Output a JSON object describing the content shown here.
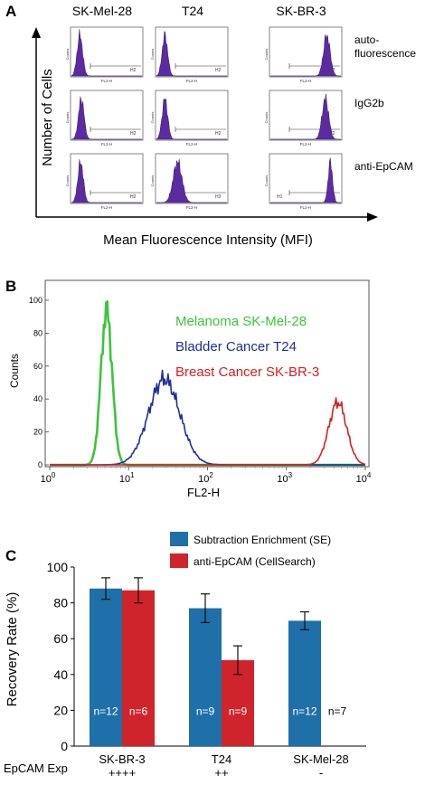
{
  "panel_a": {
    "label": "A",
    "columns": [
      "SK-Mel-28",
      "T24",
      "SK-BR-3"
    ],
    "rows": [
      "auto-\nfluorescence",
      "IgG2b",
      "anti-EpCAM"
    ],
    "ylabel": "Number of Cells",
    "xlabel": "Mean Fluorescence Intensity (MFI)",
    "mini": {
      "ylab": "Counts",
      "xlab": "FL2-H",
      "gate": "H2",
      "gate_left": "H1"
    },
    "peaks": [
      [
        [
          0.12,
          0.1
        ],
        [
          0.12,
          0.1
        ],
        [
          0.8,
          0.12
        ]
      ],
      [
        [
          0.14,
          0.1
        ],
        [
          0.12,
          0.1
        ],
        [
          0.78,
          0.12
        ]
      ],
      [
        [
          0.13,
          0.1
        ],
        [
          0.3,
          0.16
        ],
        [
          0.85,
          0.08
        ]
      ]
    ]
  },
  "panel_b": {
    "label": "B",
    "ylabel": "Counts",
    "xlabel": "FL2-H",
    "yticks": [
      0,
      20,
      40,
      60,
      80,
      100
    ],
    "xticks": [
      "0",
      "1",
      "2",
      "3",
      "4"
    ],
    "tick_base": "10",
    "series": [
      {
        "name": "Melanoma SK-Mel-28",
        "color": "#3cc43c",
        "center": 0.72,
        "width": 0.1,
        "height": 94
      },
      {
        "name": "Bladder Cancer T24",
        "color": "#1f2d9a",
        "center": 1.45,
        "width": 0.28,
        "height": 52
      },
      {
        "name": "Breast Cancer SK-BR-3",
        "color": "#d42020",
        "center": 3.65,
        "width": 0.16,
        "height": 38
      }
    ]
  },
  "chart_data": {
    "type": "bar",
    "title": "",
    "xlabel": "",
    "ylabel": "Recovery Rate (%)",
    "ylim": [
      0,
      100
    ],
    "yticks": [
      0,
      20,
      40,
      60,
      80,
      100
    ],
    "categories": [
      "SK-BR-3",
      "T24",
      "SK-Mel-28"
    ],
    "series": [
      {
        "name": "Subtraction Enrichment (SE)",
        "color": "#1f6fa8",
        "values": [
          88,
          77,
          70
        ],
        "errors": [
          6,
          8,
          5
        ],
        "n_labels": [
          "n=12",
          "n=9",
          "n=12"
        ]
      },
      {
        "name": "anti-EpCAM (CellSearch)",
        "color": "#d0242c",
        "values": [
          87,
          48,
          null
        ],
        "errors": [
          7,
          8,
          null
        ],
        "n_labels": [
          "n=6",
          "n=9",
          "n=7"
        ]
      }
    ],
    "epcam_label": "EpCAM Exp",
    "epcam_values": [
      "++++",
      "++",
      "-"
    ],
    "legend_position": "top-right",
    "panel_label": "C"
  }
}
